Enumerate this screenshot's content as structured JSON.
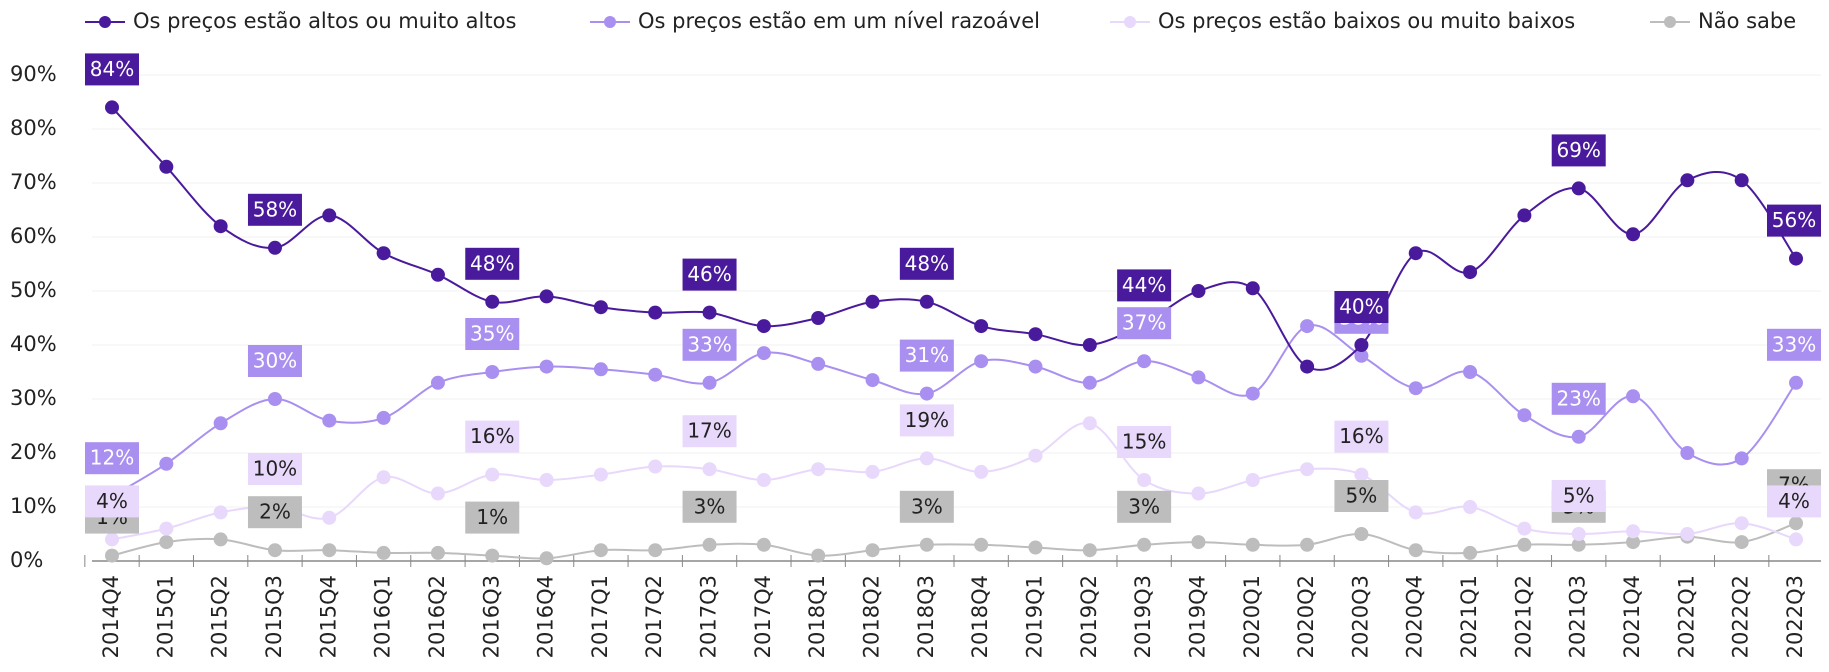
{
  "chart_data": {
    "type": "line",
    "categories": [
      "2014Q4",
      "2015Q1",
      "2015Q2",
      "2015Q3",
      "2015Q4",
      "2016Q1",
      "2016Q2",
      "2016Q3",
      "2016Q4",
      "2017Q1",
      "2017Q2",
      "2017Q3",
      "2017Q4",
      "2018Q1",
      "2018Q2",
      "2018Q3",
      "2018Q4",
      "2019Q1",
      "2019Q2",
      "2019Q3",
      "2019Q4",
      "2020Q1",
      "2020Q2",
      "2020Q3",
      "2020Q4",
      "2021Q1",
      "2021Q2",
      "2021Q3",
      "2021Q4",
      "2022Q1",
      "2022Q2",
      "2022Q3"
    ],
    "series": [
      {
        "name": "Os preços estão altos ou muito altos",
        "color": "#4a1a9c",
        "label_text": "#ffffff",
        "values": [
          84,
          73,
          62,
          58,
          64,
          57,
          53,
          48,
          49,
          47,
          46,
          46,
          43.5,
          45,
          48,
          48,
          43.5,
          42,
          40,
          44,
          50,
          50.5,
          36,
          40,
          57,
          53.5,
          64,
          69,
          60.5,
          70.5,
          70.5,
          56
        ],
        "value_labels": [
          "84%",
          null,
          null,
          "58%",
          null,
          null,
          null,
          "48%",
          null,
          null,
          null,
          "46%",
          null,
          null,
          null,
          "48%",
          null,
          null,
          null,
          "44%",
          null,
          null,
          null,
          "40%",
          null,
          null,
          null,
          "69%",
          null,
          null,
          null,
          "56%"
        ]
      },
      {
        "name": "Os preços estão em um nível razoável",
        "color": "#a98ff0",
        "label_text": "#ffffff",
        "values": [
          12,
          18,
          25.5,
          30,
          26,
          26.5,
          33,
          35,
          36,
          35.5,
          34.5,
          33,
          38.5,
          36.5,
          33.5,
          31,
          37,
          36,
          33,
          37,
          34,
          31,
          43.5,
          38,
          32,
          35,
          27,
          23,
          30.5,
          20,
          19,
          33
        ],
        "value_labels": [
          "12%",
          null,
          null,
          "30%",
          null,
          null,
          null,
          "35%",
          null,
          null,
          null,
          "33%",
          null,
          null,
          null,
          "31%",
          null,
          null,
          null,
          "37%",
          null,
          null,
          null,
          "38%",
          null,
          null,
          null,
          "23%",
          null,
          null,
          null,
          "33%"
        ]
      },
      {
        "name": "Os preços estão baixos ou muito baixos",
        "color": "#e8d8fb",
        "label_text": "#222222",
        "values": [
          4,
          6,
          9,
          10,
          8,
          15.5,
          12.5,
          16,
          15,
          16,
          17.5,
          17,
          15,
          17,
          16.5,
          19,
          16.5,
          19.5,
          25.5,
          15,
          12.5,
          15,
          17,
          16,
          9,
          10,
          6,
          5,
          5.5,
          5,
          7,
          4
        ],
        "value_labels": [
          "4%",
          null,
          null,
          "10%",
          null,
          null,
          null,
          "16%",
          null,
          null,
          null,
          "17%",
          null,
          null,
          null,
          "19%",
          null,
          null,
          null,
          "15%",
          null,
          null,
          null,
          "16%",
          null,
          null,
          null,
          "5%",
          null,
          null,
          null,
          "4%"
        ]
      },
      {
        "name": "Não sabe",
        "color": "#bdbdbd",
        "label_text": "#222222",
        "values": [
          1,
          3.5,
          4,
          2,
          2,
          1.5,
          1.5,
          1,
          0.5,
          2,
          2,
          3,
          3,
          1,
          2,
          3,
          3,
          2.5,
          2,
          3,
          3.5,
          3,
          3,
          5,
          2,
          1.5,
          3,
          3,
          3.5,
          4.5,
          3.5,
          7
        ],
        "value_labels": [
          "1%",
          null,
          null,
          "2%",
          null,
          null,
          null,
          "1%",
          null,
          null,
          null,
          "3%",
          null,
          null,
          null,
          "3%",
          null,
          null,
          null,
          "3%",
          null,
          null,
          null,
          "5%",
          null,
          null,
          null,
          "3%",
          null,
          null,
          null,
          "7%"
        ]
      }
    ],
    "ylim": [
      0,
      90
    ],
    "yticks": [
      {
        "value": 0,
        "label": "0%"
      },
      {
        "value": 10,
        "label": "10%"
      },
      {
        "value": 20,
        "label": "20%"
      },
      {
        "value": 30,
        "label": "30%"
      },
      {
        "value": 40,
        "label": "40%"
      },
      {
        "value": 50,
        "label": "50%"
      },
      {
        "value": 60,
        "label": "60%"
      },
      {
        "value": 70,
        "label": "70%"
      },
      {
        "value": 80,
        "label": "80%"
      },
      {
        "value": 90,
        "label": "90%"
      }
    ],
    "grid": true,
    "legend": "top"
  }
}
